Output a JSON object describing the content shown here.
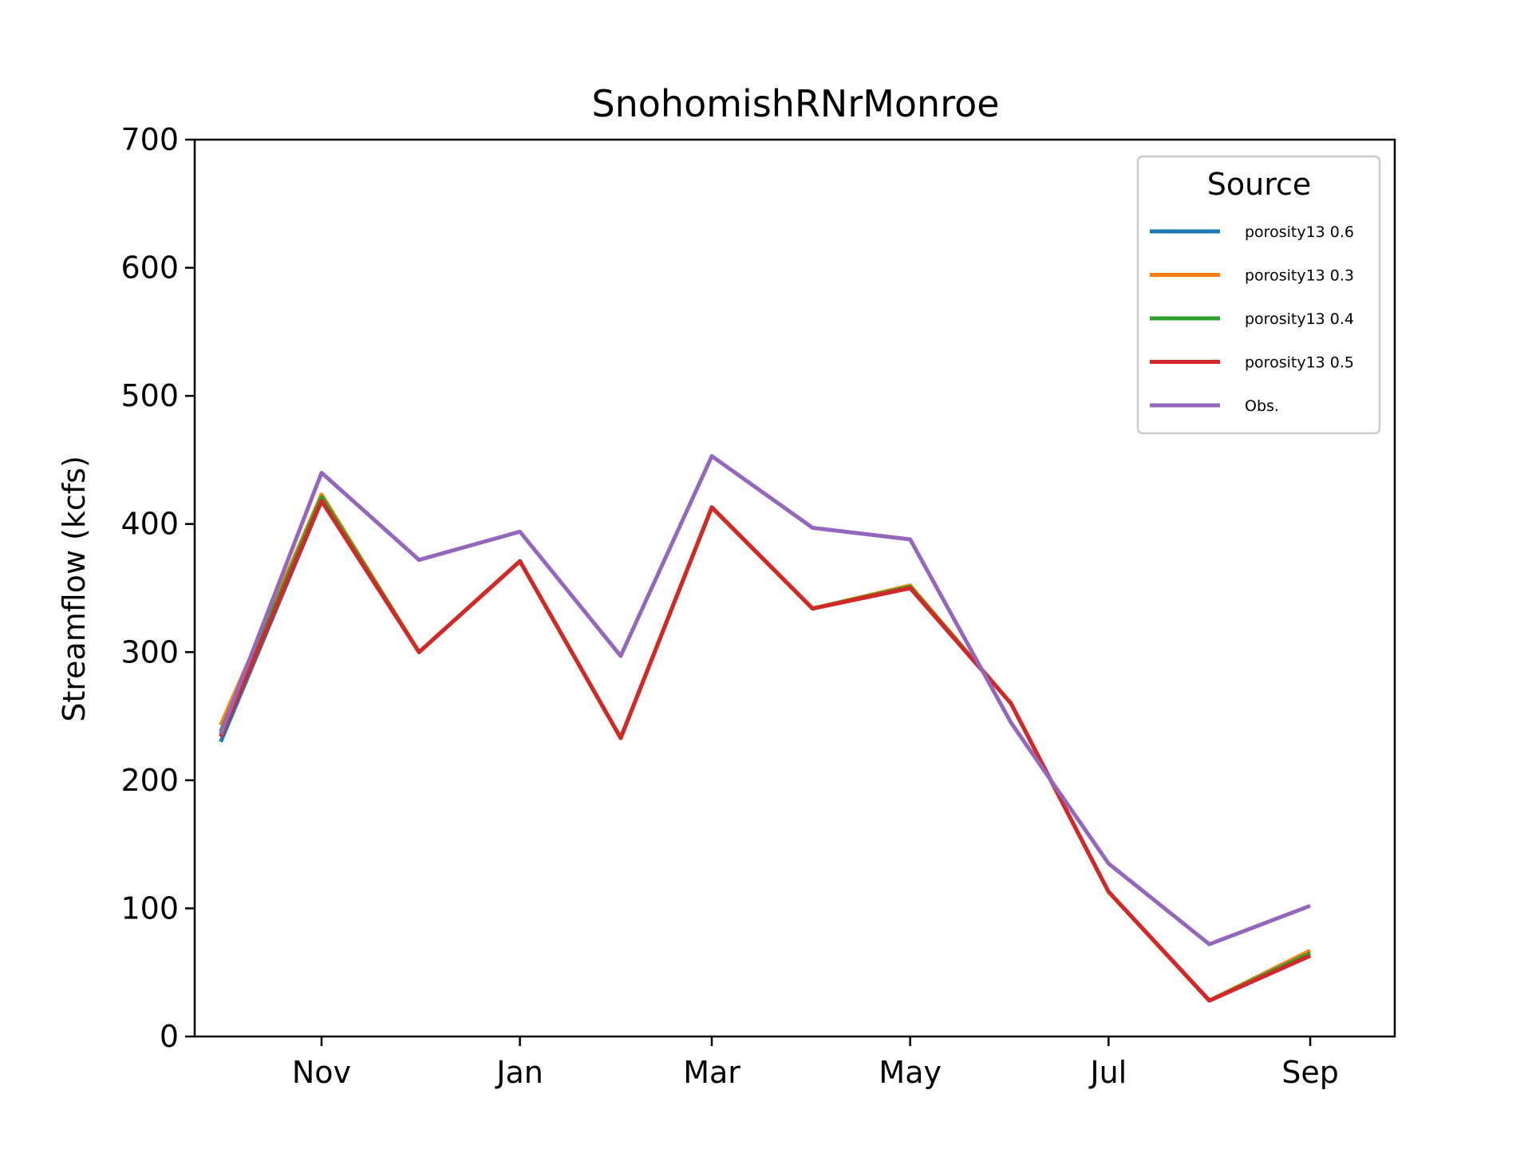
{
  "chart_data": {
    "type": "line",
    "title": "SnohomishRNrMonroe",
    "xlabel": "",
    "ylabel": "Streamflow (kcfs)",
    "ylim": [
      0,
      700
    ],
    "yticks": [
      0,
      100,
      200,
      300,
      400,
      500,
      600,
      700
    ],
    "x": [
      "2000-10-01",
      "2000-11-01",
      "2000-12-01",
      "2001-01-01",
      "2001-02-01",
      "2001-03-01",
      "2001-04-01",
      "2001-05-01",
      "2001-06-01",
      "2001-07-01",
      "2001-08-01",
      "2001-09-01"
    ],
    "xlim": [
      "2000-09-23",
      "2001-09-27"
    ],
    "xticks": [
      {
        "date": "2000-11-01",
        "label": "Nov"
      },
      {
        "date": "2001-01-01",
        "label": "Jan"
      },
      {
        "date": "2001-03-01",
        "label": "Mar"
      },
      {
        "date": "2001-05-01",
        "label": "May"
      },
      {
        "date": "2001-07-01",
        "label": "Jul"
      },
      {
        "date": "2001-09-01",
        "label": "Sep"
      }
    ],
    "grid": false,
    "legend": {
      "title": "Source",
      "placement": "top-right"
    },
    "series": [
      {
        "name": "porosity13 0.6",
        "color": "#1f77b4",
        "values": [
          230,
          418,
          300,
          371,
          233,
          413,
          334,
          350,
          260,
          113,
          28,
          63
        ]
      },
      {
        "name": "porosity13 0.3",
        "color": "#ff7f0e",
        "values": [
          243,
          423,
          300,
          371,
          233,
          413,
          334,
          352,
          260,
          113,
          28,
          67
        ]
      },
      {
        "name": "porosity13 0.4",
        "color": "#2ca02c",
        "values": [
          238,
          421,
          300,
          371,
          233,
          413,
          334,
          351,
          260,
          113,
          28,
          65
        ]
      },
      {
        "name": "porosity13 0.5",
        "color": "#d62728",
        "values": [
          234,
          418,
          300,
          371,
          233,
          413,
          334,
          350,
          260,
          113,
          28,
          63
        ]
      },
      {
        "name": "Obs.",
        "color": "#9467bd",
        "values": [
          236,
          440,
          372,
          394,
          297,
          453,
          397,
          388,
          245,
          135,
          72,
          102
        ]
      }
    ]
  }
}
